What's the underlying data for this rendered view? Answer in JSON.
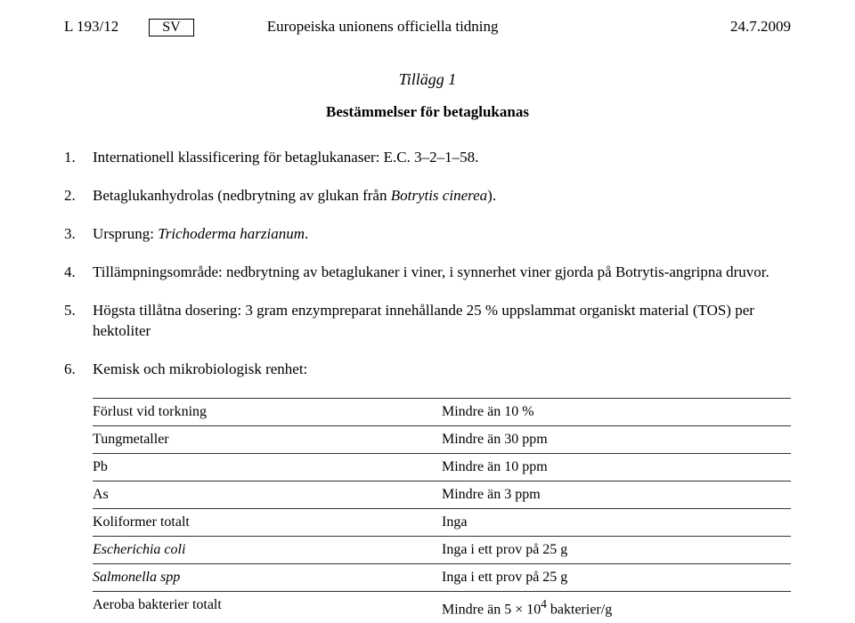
{
  "header": {
    "page_ref": "L 193/12",
    "lang": "SV",
    "title": "Europeiska unionens officiella tidning",
    "date": "24.7.2009"
  },
  "appendix_title": "Tillägg 1",
  "subtitle": "Bestämmelser för betaglukanas",
  "items": [
    {
      "num": "1.",
      "text": "Internationell klassificering för betaglukanaser: E.C. 3–2–1–58."
    },
    {
      "num": "2.",
      "text_pre": "Betaglukanhydrolas (nedbrytning av glukan från ",
      "italic": "Botrytis cinerea",
      "text_post": ")."
    },
    {
      "num": "3.",
      "text_pre": "Ursprung: ",
      "italic": "Trichoderma harzianum",
      "text_post": "."
    },
    {
      "num": "4.",
      "text": "Tillämpningsområde: nedbrytning av betaglukaner i viner, i synnerhet viner gjorda på Botrytis-angripna druvor."
    },
    {
      "num": "5.",
      "text": "Högsta tillåtna dosering: 3 gram enzympreparat innehållande 25 % uppslammat organiskt material (TOS) per hektoliter"
    },
    {
      "num": "6.",
      "text": "Kemisk och mikrobiologisk renhet:"
    }
  ],
  "table": {
    "rows": [
      {
        "label": "Förlust vid torkning",
        "value": "Mindre än 10 %",
        "label_italic": false
      },
      {
        "label": "Tungmetaller",
        "value": "Mindre än 30 ppm",
        "label_italic": false
      },
      {
        "label": "Pb",
        "value": "Mindre än 10 ppm",
        "label_italic": false
      },
      {
        "label": "As",
        "value": "Mindre än 3 ppm",
        "label_italic": false
      },
      {
        "label": "Koliformer totalt",
        "value": "Inga",
        "label_italic": false
      },
      {
        "label": "Escherichia coli",
        "value": "Inga i ett prov på 25 g",
        "label_italic": true
      },
      {
        "label": "Salmonella spp",
        "value": "Inga i ett prov på 25 g",
        "label_italic": true
      },
      {
        "label": "Aeroba bakterier totalt",
        "value_html": "Mindre än 5 × 10<sup>4</sup> bakterier/g",
        "label_italic": false
      }
    ]
  }
}
